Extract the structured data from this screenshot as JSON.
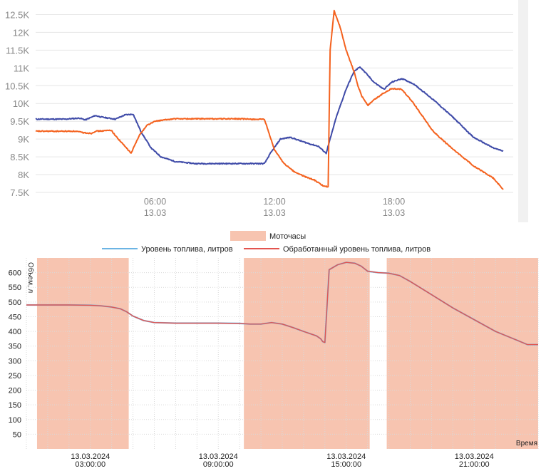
{
  "chart_data": [
    {
      "type": "line",
      "title": "",
      "xlabel": "",
      "ylabel": "",
      "y_ticks": [
        "7.5K",
        "8K",
        "8.5K",
        "9K",
        "9.5K",
        "10K",
        "10.5K",
        "11K",
        "11.5K",
        "12K",
        "12.5K"
      ],
      "y_tick_values": [
        7500,
        8000,
        8500,
        9000,
        9500,
        10000,
        10500,
        11000,
        11500,
        12000,
        12500
      ],
      "ylim": [
        7400,
        12750
      ],
      "xlim": [
        0,
        24
      ],
      "x_ticks": [
        {
          "x": 6,
          "time": "06:00",
          "date": "13.03"
        },
        {
          "x": 12,
          "time": "12:00",
          "date": "13.03"
        },
        {
          "x": 18,
          "time": "18:00",
          "date": "13.03"
        }
      ],
      "grid": "horizontal",
      "series": [
        {
          "color": "#3f4ba8",
          "x": [
            0,
            1.5,
            2.2,
            2.5,
            3.0,
            3.3,
            4.0,
            4.5,
            4.9,
            5.3,
            5.8,
            6.3,
            7.0,
            8.0,
            10.0,
            11.5,
            11.8,
            12.3,
            12.8,
            13.3,
            13.8,
            14.2,
            14.6,
            15.1,
            15.6,
            16.0,
            16.3,
            16.6,
            17.0,
            17.5,
            17.9,
            18.4,
            19.0,
            20.0,
            21.0,
            22.0,
            23.0,
            23.5
          ],
          "y": [
            9560,
            9560,
            9590,
            9540,
            9660,
            9620,
            9560,
            9680,
            9700,
            9200,
            8750,
            8500,
            8370,
            8310,
            8310,
            8310,
            8600,
            9000,
            9050,
            8950,
            8860,
            8800,
            8600,
            9600,
            10400,
            10900,
            11030,
            10850,
            10600,
            10400,
            10600,
            10700,
            10550,
            10100,
            9600,
            9050,
            8750,
            8660
          ]
        },
        {
          "color": "#f4621f",
          "x": [
            0,
            2.0,
            2.4,
            2.8,
            3.0,
            3.4,
            3.8,
            4.0,
            4.4,
            4.8,
            5.2,
            5.6,
            6.0,
            6.5,
            7.0,
            8.0,
            10.0,
            11.5,
            12.0,
            12.5,
            13.0,
            13.5,
            14.0,
            14.4,
            14.7,
            14.8,
            15.0,
            15.3,
            15.6,
            16.0,
            16.2,
            16.4,
            16.7,
            17.0,
            17.5,
            17.9,
            18.4,
            19.0,
            20.0,
            21.0,
            22.0,
            23.0,
            23.5
          ],
          "y": [
            9220,
            9220,
            9180,
            9160,
            9220,
            9230,
            9250,
            9100,
            8850,
            8600,
            9100,
            9390,
            9500,
            9540,
            9570,
            9570,
            9570,
            9550,
            8700,
            8300,
            8080,
            7950,
            7850,
            7700,
            7650,
            11500,
            12600,
            12150,
            11500,
            10900,
            10500,
            10200,
            9950,
            10100,
            10300,
            10420,
            10400,
            10000,
            9200,
            8700,
            8250,
            7900,
            7580
          ]
        }
      ]
    },
    {
      "type": "line",
      "title": "",
      "xlabel": "Время",
      "ylabel": "Объем, л",
      "y_ticks": [
        50,
        100,
        150,
        200,
        250,
        300,
        350,
        400,
        450,
        500,
        550,
        600
      ],
      "ylim": [
        0,
        650
      ],
      "xlim": [
        0,
        24
      ],
      "x_ticks": [
        {
          "x": 3,
          "date": "13.03.2024",
          "time": "03:00:00"
        },
        {
          "x": 9,
          "date": "13.03.2024",
          "time": "09:00:00"
        },
        {
          "x": 15,
          "date": "13.03.2024",
          "time": "15:00:00"
        },
        {
          "x": 21,
          "date": "13.03.2024",
          "time": "21:00:00"
        }
      ],
      "legend": {
        "placement": "top-center",
        "engine_hours_label": "Моточасы",
        "engine_hours_color": "#f7c4b0",
        "series_labels": [
          "Уровень топлива, литров",
          "Обработанный уровень топлива, литров"
        ]
      },
      "engine_hours_intervals": [
        [
          0.5,
          4.8
        ],
        [
          10.2,
          16.1
        ],
        [
          16.9,
          24
        ]
      ],
      "series": [
        {
          "name": "Уровень топлива, литров",
          "color": "#6cb4e4",
          "x": [
            0,
            1,
            2,
            3,
            3.5,
            4,
            4.4,
            4.7,
            5.0,
            5.5,
            6.0,
            7.0,
            8.0,
            9.0,
            10.0,
            10.5,
            11.0,
            11.5,
            12.0,
            12.5,
            13.0,
            13.6,
            13.8,
            13.9,
            14.0,
            14.2,
            14.6,
            15.0,
            15.4,
            15.7,
            16.0,
            16.5,
            17.0,
            17.5,
            18.0,
            19.0,
            20.0,
            21.0,
            22.0,
            23.0,
            23.5,
            24.0
          ],
          "y": [
            490,
            490,
            490,
            489,
            487,
            483,
            477,
            467,
            452,
            437,
            430,
            428,
            428,
            428,
            427,
            425,
            425,
            430,
            425,
            413,
            400,
            385,
            375,
            365,
            362,
            610,
            627,
            635,
            632,
            622,
            605,
            600,
            598,
            590,
            570,
            525,
            480,
            440,
            400,
            370,
            355,
            355
          ]
        },
        {
          "name": "Обработанный уровень топлива, литров",
          "color": "#e3544f",
          "x": [
            0,
            1,
            2,
            3,
            3.5,
            4,
            4.4,
            4.7,
            5.0,
            5.5,
            6.0,
            7.0,
            8.0,
            9.0,
            10.0,
            10.5,
            11.0,
            11.5,
            12.0,
            12.5,
            13.0,
            13.6,
            13.8,
            13.9,
            14.0,
            14.2,
            14.6,
            15.0,
            15.4,
            15.7,
            16.0,
            16.5,
            17.0,
            17.5,
            18.0,
            19.0,
            20.0,
            21.0,
            22.0,
            23.0,
            23.5,
            24.0
          ],
          "y": [
            490,
            490,
            490,
            489,
            487,
            483,
            477,
            467,
            452,
            437,
            430,
            428,
            428,
            428,
            427,
            425,
            425,
            430,
            425,
            413,
            400,
            385,
            375,
            365,
            362,
            610,
            627,
            635,
            632,
            622,
            605,
            600,
            598,
            590,
            570,
            525,
            480,
            440,
            400,
            370,
            355,
            355
          ]
        }
      ]
    }
  ]
}
